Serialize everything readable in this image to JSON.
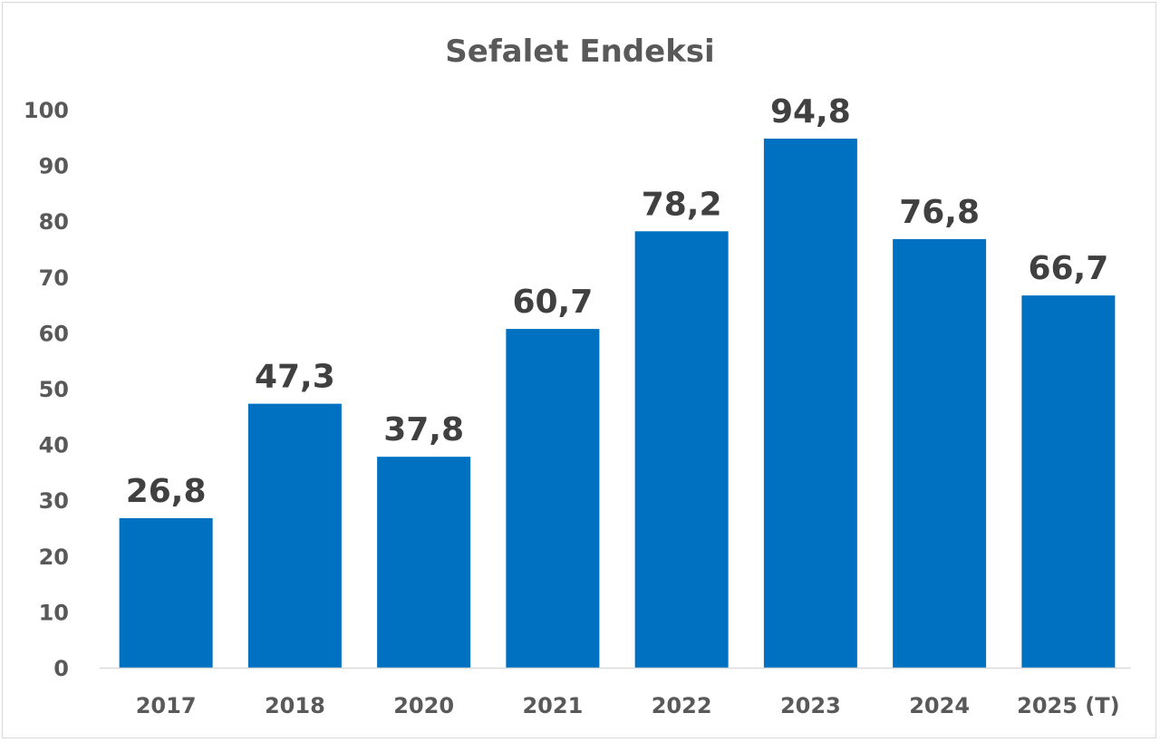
{
  "chart_data": {
    "type": "bar",
    "title": "Sefalet Endeksi",
    "xlabel": "",
    "ylabel": "",
    "categories": [
      "2017",
      "2018",
      "2020",
      "2021",
      "2022",
      "2023",
      "2024",
      "2025 (T)"
    ],
    "values": [
      26.8,
      47.3,
      37.8,
      60.7,
      78.2,
      94.8,
      76.8,
      66.7
    ],
    "data_labels": [
      "26,8",
      "47,3",
      "37,8",
      "60,7",
      "78,2",
      "94,8",
      "76,8",
      "66,7"
    ],
    "ylim": [
      0,
      100
    ],
    "yticks": [
      "0",
      "10",
      "20",
      "30",
      "40",
      "50",
      "60",
      "70",
      "80",
      "90",
      "100"
    ],
    "grid": false,
    "legend": "none",
    "bar_color": "#0070c0",
    "axis_color": "#d9d9d9"
  }
}
